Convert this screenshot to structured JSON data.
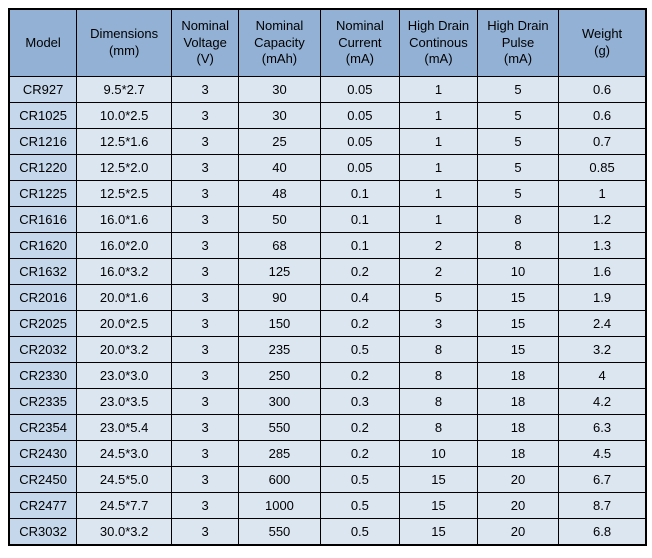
{
  "page": {
    "background": "#ffffff"
  },
  "colors": {
    "header_bg": "#92B1D5",
    "model_column_bg": "#C5D7EB",
    "cell_bg": "#DCE6F1",
    "border": "#000000",
    "text": "#000000"
  },
  "table": {
    "columns": [
      {
        "id": "model",
        "label": "Model",
        "width_pct": 10.5
      },
      {
        "id": "dimensions",
        "label": "Dimensions\n(mm)",
        "width_pct": 15.0
      },
      {
        "id": "nominal_voltage",
        "label": "Nominal\nVoltage\n(V)",
        "width_pct": 10.5
      },
      {
        "id": "nominal_capacity",
        "label": "Nominal\nCapacity\n(mAh)",
        "width_pct": 12.8
      },
      {
        "id": "nominal_current",
        "label": "Nominal\nCurrent\n(mA)",
        "width_pct": 12.5
      },
      {
        "id": "high_drain_continous",
        "label": "High Drain\nContinous\n(mA)",
        "width_pct": 12.2
      },
      {
        "id": "high_drain_pulse",
        "label": "High Drain\nPulse\n(mA)",
        "width_pct": 12.8
      },
      {
        "id": "weight",
        "label": "Weight\n(g)",
        "width_pct": 13.7
      }
    ],
    "rows": [
      [
        "CR927",
        "9.5*2.7",
        "3",
        "30",
        "0.05",
        "1",
        "5",
        "0.6"
      ],
      [
        "CR1025",
        "10.0*2.5",
        "3",
        "30",
        "0.05",
        "1",
        "5",
        "0.6"
      ],
      [
        "CR1216",
        "12.5*1.6",
        "3",
        "25",
        "0.05",
        "1",
        "5",
        "0.7"
      ],
      [
        "CR1220",
        "12.5*2.0",
        "3",
        "40",
        "0.05",
        "1",
        "5",
        "0.85"
      ],
      [
        "CR1225",
        "12.5*2.5",
        "3",
        "48",
        "0.1",
        "1",
        "5",
        "1"
      ],
      [
        "CR1616",
        "16.0*1.6",
        "3",
        "50",
        "0.1",
        "1",
        "8",
        "1.2"
      ],
      [
        "CR1620",
        "16.0*2.0",
        "3",
        "68",
        "0.1",
        "2",
        "8",
        "1.3"
      ],
      [
        "CR1632",
        "16.0*3.2",
        "3",
        "125",
        "0.2",
        "2",
        "10",
        "1.6"
      ],
      [
        "CR2016",
        "20.0*1.6",
        "3",
        "90",
        "0.4",
        "5",
        "15",
        "1.9"
      ],
      [
        "CR2025",
        "20.0*2.5",
        "3",
        "150",
        "0.2",
        "3",
        "15",
        "2.4"
      ],
      [
        "CR2032",
        "20.0*3.2",
        "3",
        "235",
        "0.5",
        "8",
        "15",
        "3.2"
      ],
      [
        "CR2330",
        "23.0*3.0",
        "3",
        "250",
        "0.2",
        "8",
        "18",
        "4"
      ],
      [
        "CR2335",
        "23.0*3.5",
        "3",
        "300",
        "0.3",
        "8",
        "18",
        "4.2"
      ],
      [
        "CR2354",
        "23.0*5.4",
        "3",
        "550",
        "0.2",
        "8",
        "18",
        "6.3"
      ],
      [
        "CR2430",
        "24.5*3.0",
        "3",
        "285",
        "0.2",
        "10",
        "18",
        "4.5"
      ],
      [
        "CR2450",
        "24.5*5.0",
        "3",
        "600",
        "0.5",
        "15",
        "20",
        "6.7"
      ],
      [
        "CR2477",
        "24.5*7.7",
        "3",
        "1000",
        "0.5",
        "15",
        "20",
        "8.7"
      ],
      [
        "CR3032",
        "30.0*3.2",
        "3",
        "550",
        "0.5",
        "15",
        "20",
        "6.8"
      ]
    ]
  }
}
